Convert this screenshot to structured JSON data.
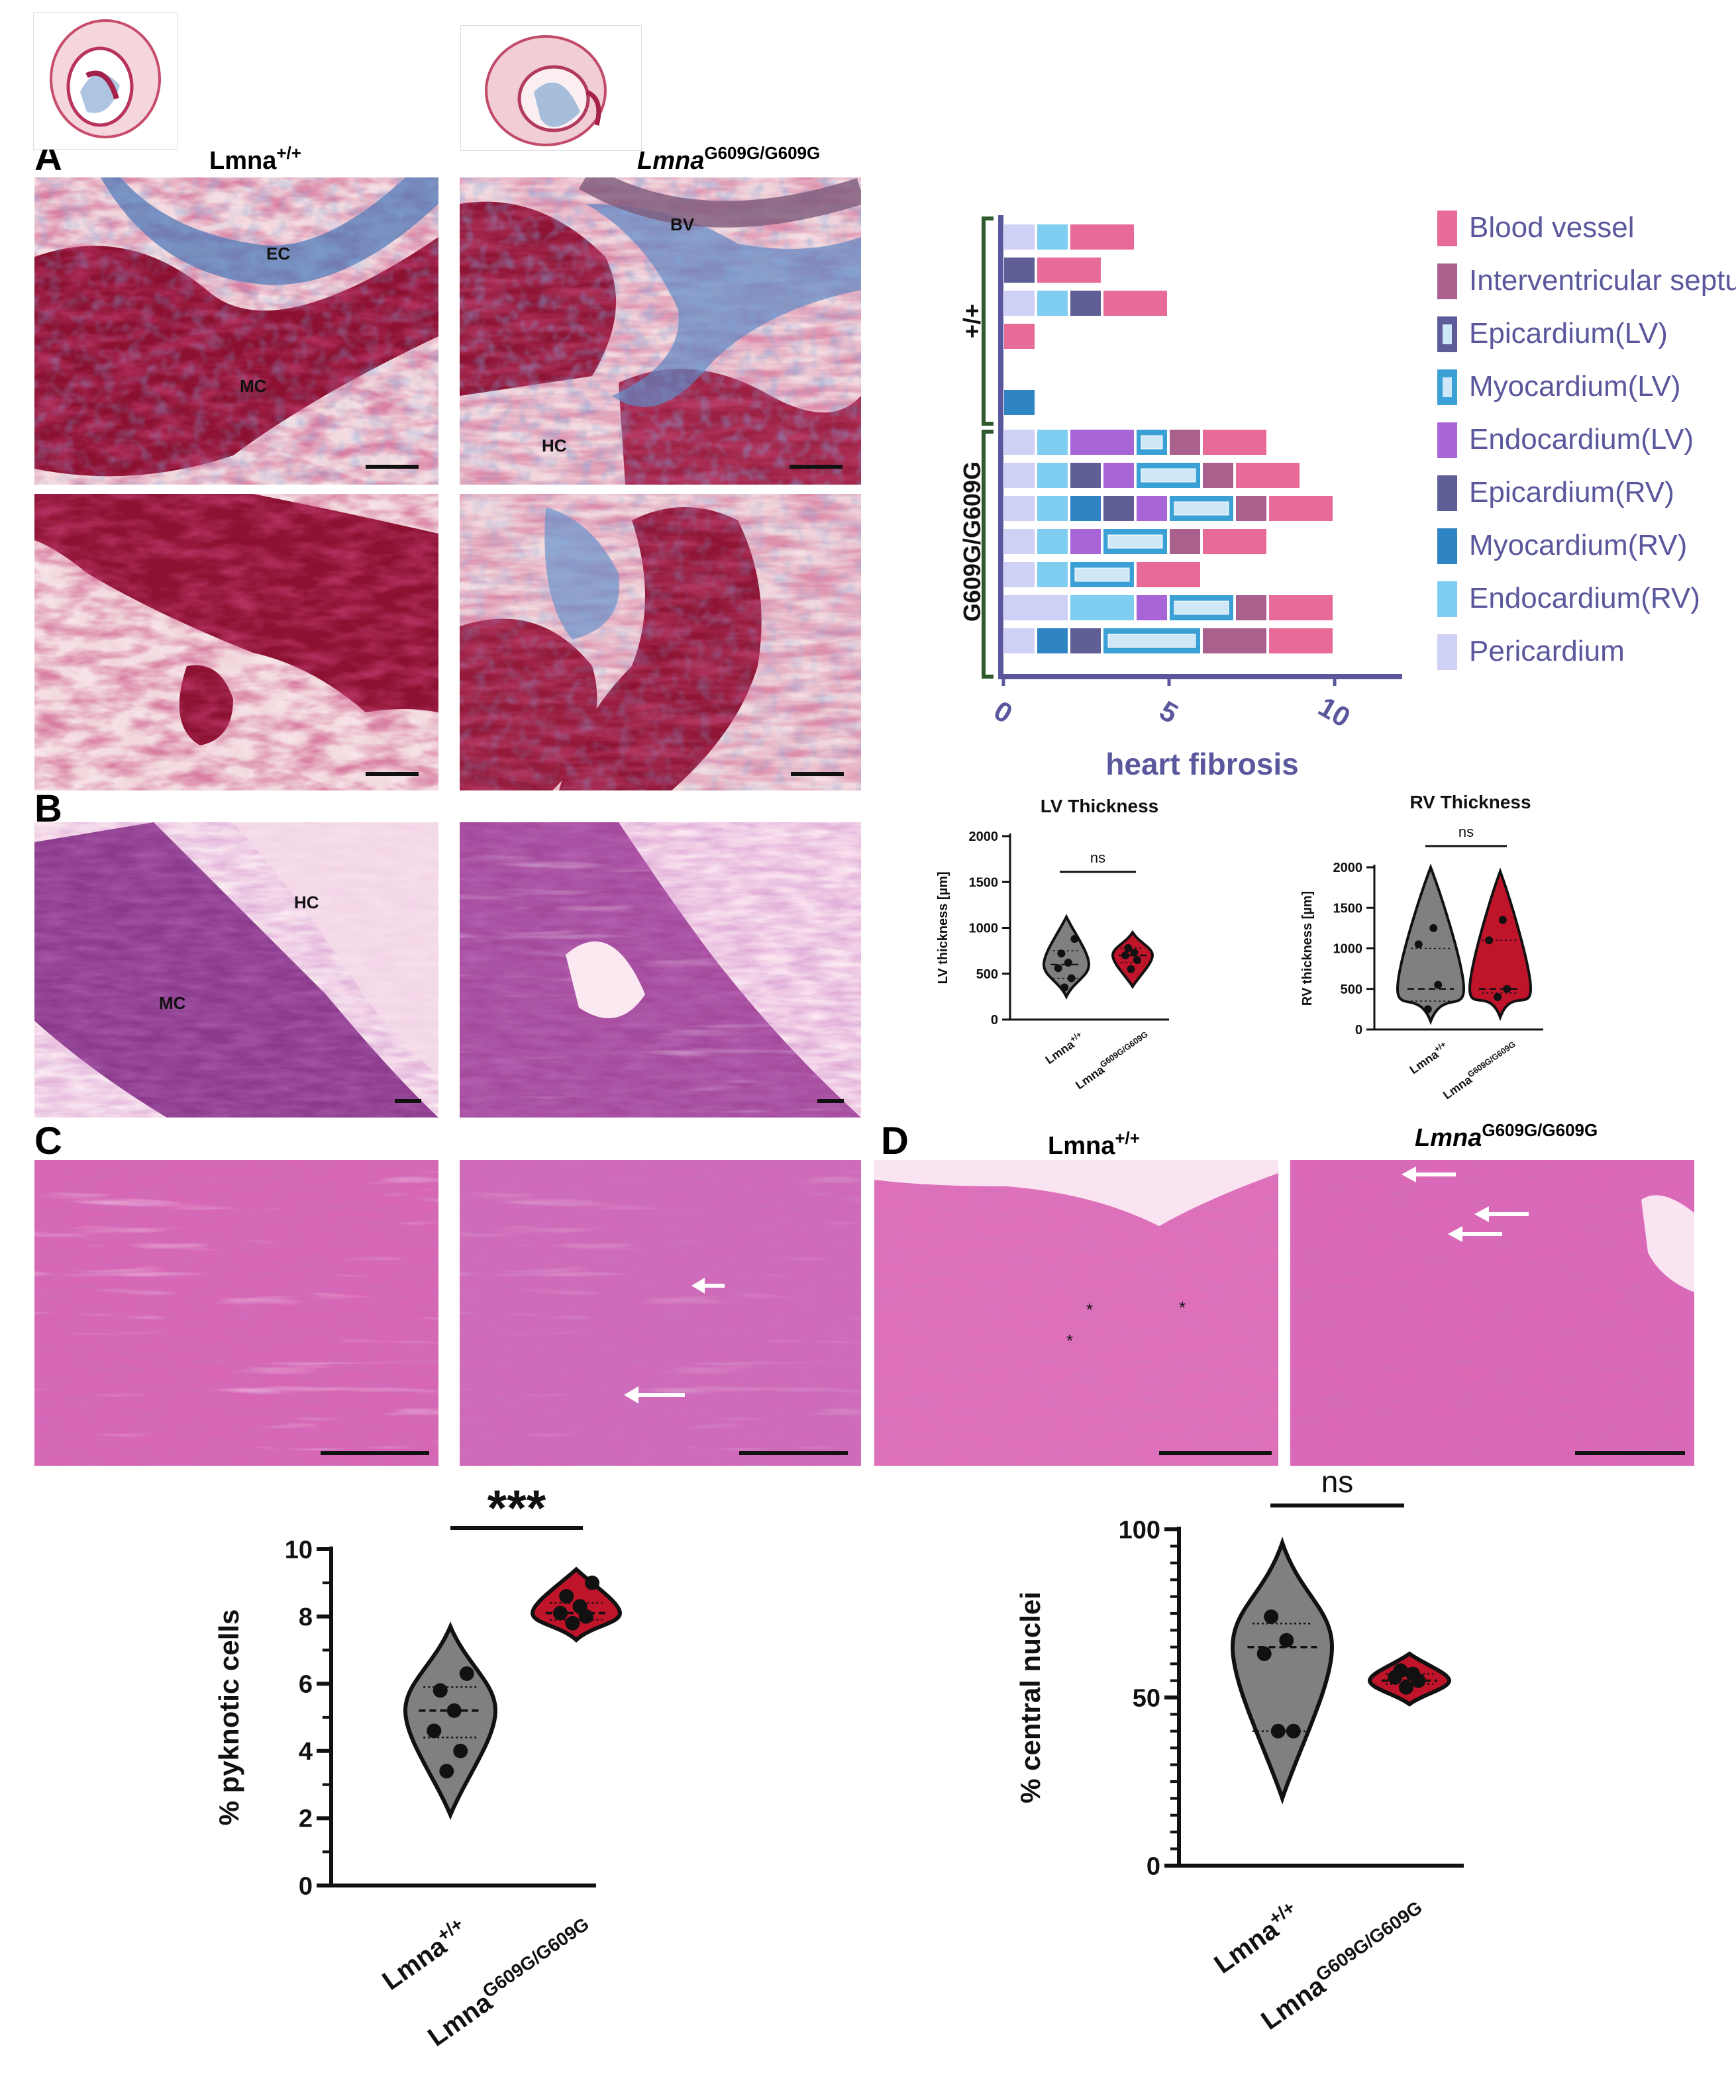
{
  "panels": {
    "A": "A",
    "B": "B",
    "C": "C",
    "D": "D"
  },
  "genotypes": {
    "wt_base": "Lmna",
    "wt_sup": "+/+",
    "mut_base": "Lmna",
    "mut_sup": "G609G/G609G"
  },
  "tissue_labels": {
    "ec": "EC",
    "mc": "MC",
    "hc": "HC",
    "bv": "BV"
  },
  "fibrosis_chart": {
    "xlabel": "heart fibrosis",
    "ticks": [
      "0",
      "5",
      "10"
    ],
    "group_wt": "+/+",
    "group_mut": "G609G/G609G",
    "legend": [
      {
        "label": "Blood vessel",
        "color": "#e76a99"
      },
      {
        "label": "Interventricular septum",
        "color": "#a9608d"
      },
      {
        "label": "Epicardium(LV)",
        "color": "#5e5c98"
      },
      {
        "label": "Myocardium(LV)",
        "color": "#3aa0d6"
      },
      {
        "label": "Endocardium(LV)",
        "color": "#a765d8"
      },
      {
        "label": "Epicardium(RV)",
        "color": "#605e96"
      },
      {
        "label": "Myocardium(RV)",
        "color": "#2f85c4"
      },
      {
        "label": "Endocardium(RV)",
        "color": "#7fcdf0"
      },
      {
        "label": "Pericardium",
        "color": "#cfd0f6"
      }
    ]
  },
  "chart_data": [
    {
      "type": "bar",
      "orientation": "horizontal-stacked",
      "xlabel": "heart fibrosis",
      "xlim": [
        0,
        12
      ],
      "rows": [
        {
          "group": "+/+",
          "segments": [
            {
              "k": "Pericardium",
              "v": 1
            },
            {
              "k": "Endocardium(RV)",
              "v": 1
            },
            {
              "k": "Blood vessel",
              "v": 2
            }
          ]
        },
        {
          "group": "+/+",
          "segments": [
            {
              "k": "Epicardium(RV)",
              "v": 1
            },
            {
              "k": "Blood vessel",
              "v": 2
            }
          ]
        },
        {
          "group": "+/+",
          "segments": [
            {
              "k": "Pericardium",
              "v": 1
            },
            {
              "k": "Endocardium(RV)",
              "v": 1
            },
            {
              "k": "Epicardium(RV)",
              "v": 1
            },
            {
              "k": "Blood vessel",
              "v": 2
            }
          ]
        },
        {
          "group": "+/+",
          "segments": [
            {
              "k": "Blood vessel",
              "v": 1
            }
          ]
        },
        {
          "group": "+/+",
          "segments": []
        },
        {
          "group": "+/+",
          "segments": [
            {
              "k": "Myocardium(RV)",
              "v": 1
            }
          ]
        },
        {
          "group": "G609G/G609G",
          "segments": [
            {
              "k": "Pericardium",
              "v": 1
            },
            {
              "k": "Endocardium(RV)",
              "v": 1
            },
            {
              "k": "Endocardium(LV)",
              "v": 2
            },
            {
              "k": "Myocardium(LV)",
              "v": 1
            },
            {
              "k": "Interventricular septum",
              "v": 1
            },
            {
              "k": "Blood vessel",
              "v": 2
            }
          ]
        },
        {
          "group": "G609G/G609G",
          "segments": [
            {
              "k": "Pericardium",
              "v": 1
            },
            {
              "k": "Endocardium(RV)",
              "v": 1
            },
            {
              "k": "Epicardium(RV)",
              "v": 1
            },
            {
              "k": "Endocardium(LV)",
              "v": 1
            },
            {
              "k": "Myocardium(LV)",
              "v": 2
            },
            {
              "k": "Interventricular septum",
              "v": 1
            },
            {
              "k": "Blood vessel",
              "v": 2
            }
          ]
        },
        {
          "group": "G609G/G609G",
          "segments": [
            {
              "k": "Pericardium",
              "v": 1
            },
            {
              "k": "Endocardium(RV)",
              "v": 1
            },
            {
              "k": "Myocardium(RV)",
              "v": 1
            },
            {
              "k": "Epicardium(RV)",
              "v": 1
            },
            {
              "k": "Endocardium(LV)",
              "v": 1
            },
            {
              "k": "Myocardium(LV)",
              "v": 2
            },
            {
              "k": "Interventricular septum",
              "v": 1
            },
            {
              "k": "Blood vessel",
              "v": 2
            }
          ]
        },
        {
          "group": "G609G/G609G",
          "segments": [
            {
              "k": "Pericardium",
              "v": 1
            },
            {
              "k": "Endocardium(RV)",
              "v": 1
            },
            {
              "k": "Endocardium(LV)",
              "v": 1
            },
            {
              "k": "Myocardium(LV)",
              "v": 2
            },
            {
              "k": "Interventricular septum",
              "v": 1
            },
            {
              "k": "Blood vessel",
              "v": 2
            }
          ]
        },
        {
          "group": "G609G/G609G",
          "segments": [
            {
              "k": "Pericardium",
              "v": 1
            },
            {
              "k": "Endocardium(RV)",
              "v": 1
            },
            {
              "k": "Myocardium(LV)",
              "v": 2
            },
            {
              "k": "Blood vessel",
              "v": 2
            }
          ]
        },
        {
          "group": "G609G/G609G",
          "segments": [
            {
              "k": "Pericardium",
              "v": 2
            },
            {
              "k": "Endocardium(RV)",
              "v": 2
            },
            {
              "k": "Endocardium(LV)",
              "v": 1
            },
            {
              "k": "Myocardium(LV)",
              "v": 2
            },
            {
              "k": "Interventricular septum",
              "v": 1
            },
            {
              "k": "Blood vessel",
              "v": 2
            }
          ]
        },
        {
          "group": "G609G/G609G",
          "segments": [
            {
              "k": "Pericardium",
              "v": 1
            },
            {
              "k": "Myocardium(RV)",
              "v": 1
            },
            {
              "k": "Epicardium(RV)",
              "v": 1
            },
            {
              "k": "Myocardium(LV)",
              "v": 3
            },
            {
              "k": "Interventricular septum",
              "v": 2
            },
            {
              "k": "Blood vessel",
              "v": 2
            }
          ]
        }
      ]
    },
    {
      "type": "violin",
      "title": "LV Thickness",
      "ylabel": "LV thickness [µm]",
      "ylim": [
        0,
        2000
      ],
      "yticks": [
        "0",
        "500",
        "1000",
        "1500",
        "2000"
      ],
      "significance": "ns",
      "groups": [
        {
          "base": "Lmna",
          "sup": "+/+",
          "color": "#808080",
          "points": [
            350,
            450,
            560,
            620,
            720,
            880
          ],
          "median": 600,
          "q1": 450,
          "q3": 750,
          "min": 250,
          "max": 1120
        },
        {
          "base": "Lmna",
          "sup": "G609G/G609G",
          "color": "#c0142a",
          "points": [
            550,
            650,
            700,
            730,
            780
          ],
          "median": 700,
          "q1": 620,
          "q3": 780,
          "min": 360,
          "max": 950
        }
      ]
    },
    {
      "type": "violin",
      "title": "RV Thickness",
      "ylabel": "RV thickness [µm]",
      "ylim": [
        0,
        2000
      ],
      "yticks": [
        "0",
        "500",
        "1000",
        "1500",
        "2000"
      ],
      "significance": "ns",
      "groups": [
        {
          "base": "Lmna",
          "sup": "+/+",
          "color": "#808080",
          "points": [
            250,
            550,
            1050,
            1250
          ],
          "median": 500,
          "q1": 350,
          "q3": 1000,
          "min": 100,
          "max": 2000
        },
        {
          "base": "Lmna",
          "sup": "G609G/G609G",
          "color": "#c0142a",
          "points": [
            400,
            500,
            1100,
            1350
          ],
          "median": 500,
          "q1": 450,
          "q3": 1100,
          "min": 150,
          "max": 1950
        }
      ]
    },
    {
      "type": "violin",
      "ylabel": "% pyknotic cells",
      "ylim": [
        0,
        10
      ],
      "yticks": [
        "0",
        "2",
        "4",
        "6",
        "8",
        "10"
      ],
      "significance": "***",
      "groups": [
        {
          "base": "Lmna",
          "sup": "+/+",
          "color": "#808080",
          "points": [
            3.4,
            4.0,
            4.6,
            5.2,
            5.8,
            6.3
          ],
          "median": 5.2,
          "q1": 4.4,
          "q3": 5.9,
          "min": 2.1,
          "max": 7.7
        },
        {
          "base": "Lmna",
          "sup": "G609G/G609G",
          "color": "#c0142a",
          "points": [
            7.8,
            8.0,
            8.1,
            8.3,
            8.6,
            9.0
          ],
          "median": 8.1,
          "q1": 7.9,
          "q3": 8.4,
          "min": 7.3,
          "max": 9.4
        }
      ]
    },
    {
      "type": "violin",
      "ylabel": "% central nuclei",
      "ylim": [
        0,
        100
      ],
      "yticks": [
        "0",
        "50",
        "100"
      ],
      "significance": "ns",
      "groups": [
        {
          "base": "Lmna",
          "sup": "+/+",
          "color": "#808080",
          "points": [
            40,
            40,
            63,
            67,
            74
          ],
          "median": 65,
          "q1": 40,
          "q3": 72,
          "min": 20,
          "max": 96
        },
        {
          "base": "Lmna",
          "sup": "G609G/G609G",
          "color": "#c0142a",
          "points": [
            53,
            55,
            56,
            57,
            58
          ],
          "median": 55,
          "q1": 54,
          "q3": 57,
          "min": 48,
          "max": 63
        }
      ]
    }
  ]
}
